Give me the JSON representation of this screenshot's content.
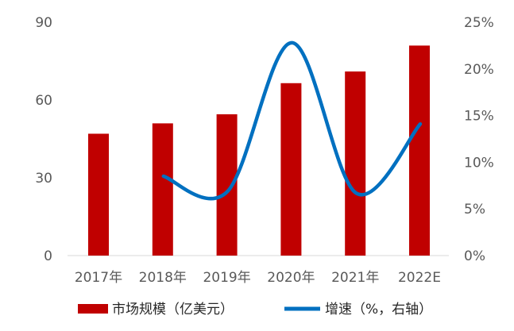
{
  "chart_data": {
    "type": "bar+line",
    "categories": [
      "2017年",
      "2018年",
      "2019年",
      "2020年",
      "2021年",
      "2022E"
    ],
    "series": [
      {
        "name": "市场规模（亿美元）",
        "type": "bar",
        "axis": "left",
        "color": "#c00000",
        "values": [
          47,
          51,
          54.5,
          66.5,
          71,
          81
        ]
      },
      {
        "name": "增速（%，右轴）",
        "type": "line",
        "axis": "right",
        "color": "#0070c0",
        "values": [
          null,
          8.5,
          6.9,
          22.8,
          6.7,
          14.1
        ]
      }
    ],
    "y_left": {
      "min": 0,
      "max": 90,
      "ticks": [
        "0",
        "30",
        "60",
        "90"
      ]
    },
    "y_right": {
      "min": 0,
      "max": 25,
      "ticks": [
        "0%",
        "5%",
        "10%",
        "15%",
        "20%",
        "25%"
      ]
    },
    "grid": false,
    "legend": "bottom"
  }
}
